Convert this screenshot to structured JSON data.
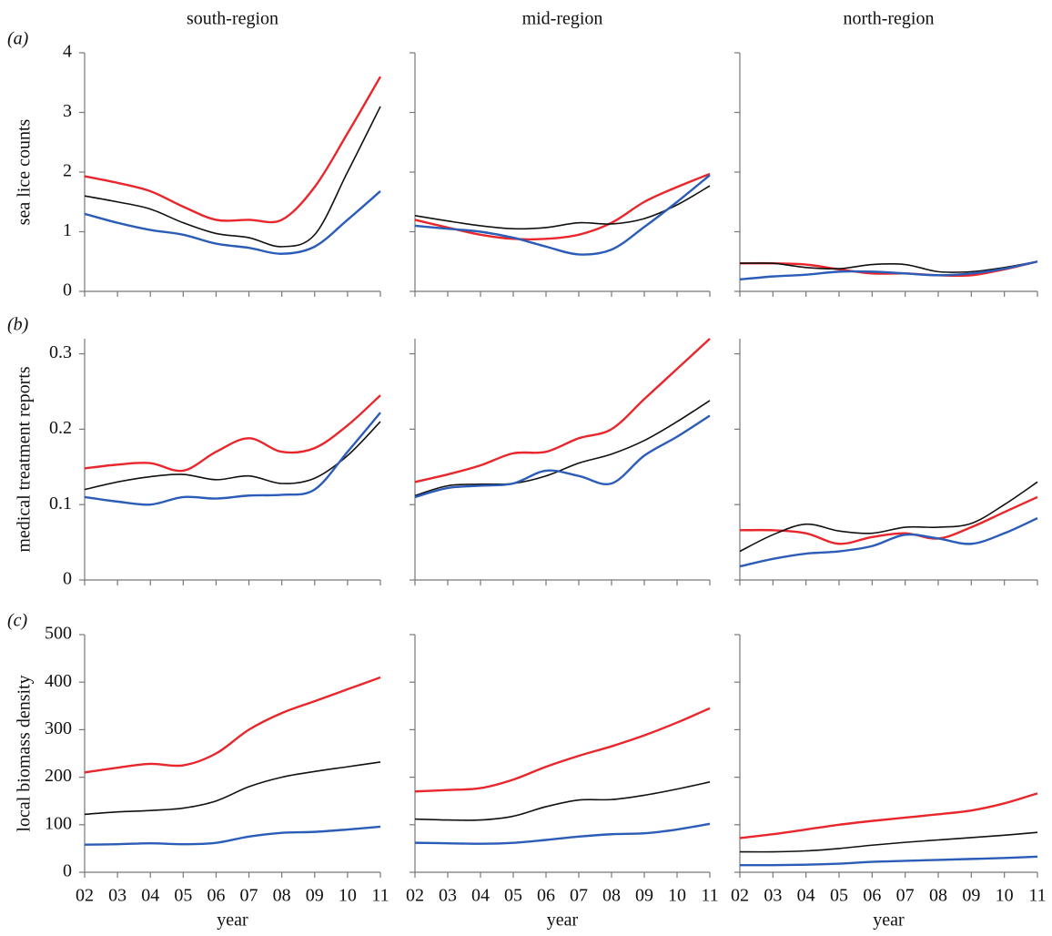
{
  "chart_data": [
    {
      "type": "line",
      "title": "south-region",
      "panel_label": "(a)",
      "ylabel": "sea lice counts",
      "x": [
        2,
        3,
        4,
        5,
        6,
        7,
        8,
        9,
        10,
        11
      ],
      "xlim": [
        2,
        11
      ],
      "xticks": [
        2,
        3,
        4,
        5,
        6,
        7,
        8,
        9,
        10,
        11
      ],
      "ylim": [
        0,
        4
      ],
      "yticks": [
        0,
        1,
        2,
        3,
        4
      ],
      "series": [
        {
          "color": "#e8262b",
          "values": [
            1.93,
            1.82,
            1.68,
            1.42,
            1.2,
            1.2,
            1.2,
            1.75,
            2.65,
            3.6
          ]
        },
        {
          "color": "#111111",
          "values": [
            1.6,
            1.5,
            1.38,
            1.15,
            0.97,
            0.9,
            0.75,
            0.95,
            2.0,
            3.1
          ]
        },
        {
          "color": "#2b5cb8",
          "values": [
            1.3,
            1.15,
            1.03,
            0.95,
            0.8,
            0.73,
            0.63,
            0.75,
            1.2,
            1.68
          ]
        }
      ]
    },
    {
      "type": "line",
      "title": "mid-region",
      "x": [
        2,
        3,
        4,
        5,
        6,
        7,
        8,
        9,
        10,
        11
      ],
      "xlim": [
        2,
        11
      ],
      "xticks": [
        2,
        3,
        4,
        5,
        6,
        7,
        8,
        9,
        10,
        11
      ],
      "ylim": [
        0,
        4
      ],
      "yticks": [
        0,
        1,
        2,
        3,
        4
      ],
      "series": [
        {
          "color": "#e8262b",
          "values": [
            1.2,
            1.07,
            0.95,
            0.88,
            0.88,
            0.95,
            1.15,
            1.5,
            1.75,
            1.97
          ]
        },
        {
          "color": "#111111",
          "values": [
            1.27,
            1.18,
            1.1,
            1.05,
            1.07,
            1.15,
            1.13,
            1.22,
            1.45,
            1.77
          ]
        },
        {
          "color": "#2b5cb8",
          "values": [
            1.1,
            1.05,
            1.0,
            0.9,
            0.75,
            0.62,
            0.7,
            1.08,
            1.5,
            1.95
          ]
        }
      ]
    },
    {
      "type": "line",
      "title": "north-region",
      "x": [
        2,
        3,
        4,
        5,
        6,
        7,
        8,
        9,
        10,
        11
      ],
      "xlim": [
        2,
        11
      ],
      "xticks": [
        2,
        3,
        4,
        5,
        6,
        7,
        8,
        9,
        10,
        11
      ],
      "ylim": [
        0,
        4
      ],
      "yticks": [
        0,
        1,
        2,
        3,
        4
      ],
      "series": [
        {
          "color": "#e8262b",
          "values": [
            0.47,
            0.47,
            0.45,
            0.37,
            0.3,
            0.3,
            0.27,
            0.27,
            0.37,
            0.5
          ]
        },
        {
          "color": "#111111",
          "values": [
            0.47,
            0.47,
            0.4,
            0.38,
            0.45,
            0.45,
            0.33,
            0.33,
            0.4,
            0.5
          ]
        },
        {
          "color": "#2b5cb8",
          "values": [
            0.2,
            0.25,
            0.28,
            0.33,
            0.33,
            0.3,
            0.27,
            0.3,
            0.38,
            0.5
          ]
        }
      ]
    },
    {
      "type": "line",
      "panel_label": "(b)",
      "ylabel": "medical treatment reports",
      "x": [
        2,
        3,
        4,
        5,
        6,
        7,
        8,
        9,
        10,
        11
      ],
      "xlim": [
        2,
        11
      ],
      "xticks": [
        2,
        3,
        4,
        5,
        6,
        7,
        8,
        9,
        10,
        11
      ],
      "ylim": [
        0,
        0.32
      ],
      "yticks": [
        0,
        0.1,
        0.2,
        0.3
      ],
      "series": [
        {
          "color": "#e8262b",
          "values": [
            0.148,
            0.153,
            0.155,
            0.145,
            0.17,
            0.188,
            0.17,
            0.175,
            0.205,
            0.245
          ]
        },
        {
          "color": "#111111",
          "values": [
            0.12,
            0.13,
            0.137,
            0.14,
            0.133,
            0.138,
            0.128,
            0.135,
            0.165,
            0.21
          ]
        },
        {
          "color": "#2b5cb8",
          "values": [
            0.11,
            0.104,
            0.1,
            0.11,
            0.108,
            0.112,
            0.113,
            0.12,
            0.17,
            0.222
          ]
        }
      ]
    },
    {
      "type": "line",
      "x": [
        2,
        3,
        4,
        5,
        6,
        7,
        8,
        9,
        10,
        11
      ],
      "xlim": [
        2,
        11
      ],
      "xticks": [
        2,
        3,
        4,
        5,
        6,
        7,
        8,
        9,
        10,
        11
      ],
      "ylim": [
        0,
        0.32
      ],
      "yticks": [
        0,
        0.1,
        0.2,
        0.3
      ],
      "series": [
        {
          "color": "#e8262b",
          "values": [
            0.13,
            0.14,
            0.152,
            0.168,
            0.17,
            0.188,
            0.2,
            0.24,
            0.28,
            0.32
          ]
        },
        {
          "color": "#111111",
          "values": [
            0.112,
            0.125,
            0.127,
            0.128,
            0.138,
            0.155,
            0.167,
            0.185,
            0.21,
            0.238
          ]
        },
        {
          "color": "#2b5cb8",
          "values": [
            0.11,
            0.122,
            0.125,
            0.128,
            0.145,
            0.138,
            0.128,
            0.165,
            0.19,
            0.218
          ]
        }
      ]
    },
    {
      "type": "line",
      "x": [
        2,
        3,
        4,
        5,
        6,
        7,
        8,
        9,
        10,
        11
      ],
      "xlim": [
        2,
        11
      ],
      "xticks": [
        2,
        3,
        4,
        5,
        6,
        7,
        8,
        9,
        10,
        11
      ],
      "ylim": [
        0,
        0.32
      ],
      "yticks": [
        0,
        0.1,
        0.2,
        0.3
      ],
      "series": [
        {
          "color": "#e8262b",
          "values": [
            0.066,
            0.066,
            0.062,
            0.048,
            0.057,
            0.062,
            0.055,
            0.07,
            0.09,
            0.11
          ]
        },
        {
          "color": "#111111",
          "values": [
            0.038,
            0.06,
            0.074,
            0.065,
            0.062,
            0.07,
            0.07,
            0.075,
            0.1,
            0.13
          ]
        },
        {
          "color": "#2b5cb8",
          "values": [
            0.018,
            0.028,
            0.035,
            0.038,
            0.045,
            0.06,
            0.055,
            0.048,
            0.062,
            0.082
          ]
        }
      ]
    },
    {
      "type": "line",
      "panel_label": "(c)",
      "ylabel": "local biomass density",
      "xlabel": "year",
      "x": [
        2,
        3,
        4,
        5,
        6,
        7,
        8,
        9,
        10,
        11
      ],
      "xlim": [
        2,
        11
      ],
      "xticks": [
        {
          "value": 2,
          "label": "02"
        },
        {
          "value": 3,
          "label": "03"
        },
        {
          "value": 4,
          "label": "04"
        },
        {
          "value": 5,
          "label": "05"
        },
        {
          "value": 6,
          "label": "06"
        },
        {
          "value": 7,
          "label": "07"
        },
        {
          "value": 8,
          "label": "08"
        },
        {
          "value": 9,
          "label": "09"
        },
        {
          "value": 10,
          "label": "10"
        },
        {
          "value": 11,
          "label": "11"
        }
      ],
      "ylim": [
        0,
        500
      ],
      "yticks": [
        0,
        100,
        200,
        300,
        400,
        500
      ],
      "series": [
        {
          "color": "#e8262b",
          "values": [
            210,
            220,
            228,
            225,
            250,
            300,
            335,
            360,
            385,
            410
          ]
        },
        {
          "color": "#111111",
          "values": [
            122,
            127,
            130,
            135,
            150,
            180,
            200,
            212,
            222,
            232
          ]
        },
        {
          "color": "#2b5cb8",
          "values": [
            58,
            59,
            61,
            59,
            62,
            75,
            83,
            85,
            90,
            96
          ]
        }
      ]
    },
    {
      "type": "line",
      "xlabel": "year",
      "x": [
        2,
        3,
        4,
        5,
        6,
        7,
        8,
        9,
        10,
        11
      ],
      "xlim": [
        2,
        11
      ],
      "xticks": [
        {
          "value": 2,
          "label": "02"
        },
        {
          "value": 3,
          "label": "03"
        },
        {
          "value": 4,
          "label": "04"
        },
        {
          "value": 5,
          "label": "05"
        },
        {
          "value": 6,
          "label": "06"
        },
        {
          "value": 7,
          "label": "07"
        },
        {
          "value": 8,
          "label": "08"
        },
        {
          "value": 9,
          "label": "09"
        },
        {
          "value": 10,
          "label": "10"
        },
        {
          "value": 11,
          "label": "11"
        }
      ],
      "ylim": [
        0,
        500
      ],
      "yticks": [
        0,
        100,
        200,
        300,
        400,
        500
      ],
      "series": [
        {
          "color": "#e8262b",
          "values": [
            170,
            173,
            177,
            195,
            222,
            245,
            265,
            288,
            315,
            345
          ]
        },
        {
          "color": "#111111",
          "values": [
            112,
            110,
            110,
            118,
            138,
            152,
            153,
            162,
            175,
            190
          ]
        },
        {
          "color": "#2b5cb8",
          "values": [
            62,
            61,
            60,
            62,
            68,
            75,
            80,
            82,
            90,
            102
          ]
        }
      ]
    },
    {
      "type": "line",
      "xlabel": "year",
      "x": [
        2,
        3,
        4,
        5,
        6,
        7,
        8,
        9,
        10,
        11
      ],
      "xlim": [
        2,
        11
      ],
      "xticks": [
        {
          "value": 2,
          "label": "02"
        },
        {
          "value": 3,
          "label": "03"
        },
        {
          "value": 4,
          "label": "04"
        },
        {
          "value": 5,
          "label": "05"
        },
        {
          "value": 6,
          "label": "06"
        },
        {
          "value": 7,
          "label": "07"
        },
        {
          "value": 8,
          "label": "08"
        },
        {
          "value": 9,
          "label": "09"
        },
        {
          "value": 10,
          "label": "10"
        },
        {
          "value": 11,
          "label": "11"
        }
      ],
      "ylim": [
        0,
        500
      ],
      "yticks": [
        0,
        100,
        200,
        300,
        400,
        500
      ],
      "series": [
        {
          "color": "#e8262b",
          "values": [
            72,
            80,
            90,
            100,
            108,
            115,
            122,
            130,
            145,
            166
          ]
        },
        {
          "color": "#111111",
          "values": [
            43,
            43,
            45,
            50,
            57,
            63,
            68,
            73,
            78,
            84
          ]
        },
        {
          "color": "#2b5cb8",
          "values": [
            15,
            15,
            16,
            18,
            22,
            24,
            26,
            28,
            30,
            33
          ]
        }
      ]
    }
  ]
}
